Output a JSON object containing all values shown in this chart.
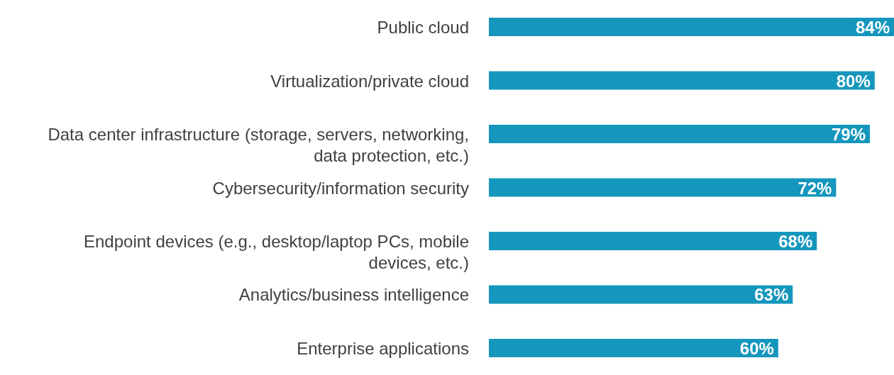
{
  "chart_data": {
    "type": "bar",
    "orientation": "horizontal",
    "categories": [
      "Public cloud",
      "Virtualization/private cloud",
      "Data center infrastructure (storage, servers, networking, data protection, etc.)",
      "Cybersecurity/information security",
      "Endpoint devices (e.g., desktop/laptop PCs, mobile devices, etc.)",
      "Analytics/business intelligence",
      "Enterprise applications"
    ],
    "values": [
      84,
      80,
      79,
      72,
      68,
      63,
      60
    ],
    "value_labels": [
      "84%",
      "80%",
      "79%",
      "72%",
      "68%",
      "63%",
      "60%"
    ],
    "color": "#1596bd",
    "xlim": [
      0,
      84
    ],
    "tick_labels": "y"
  }
}
